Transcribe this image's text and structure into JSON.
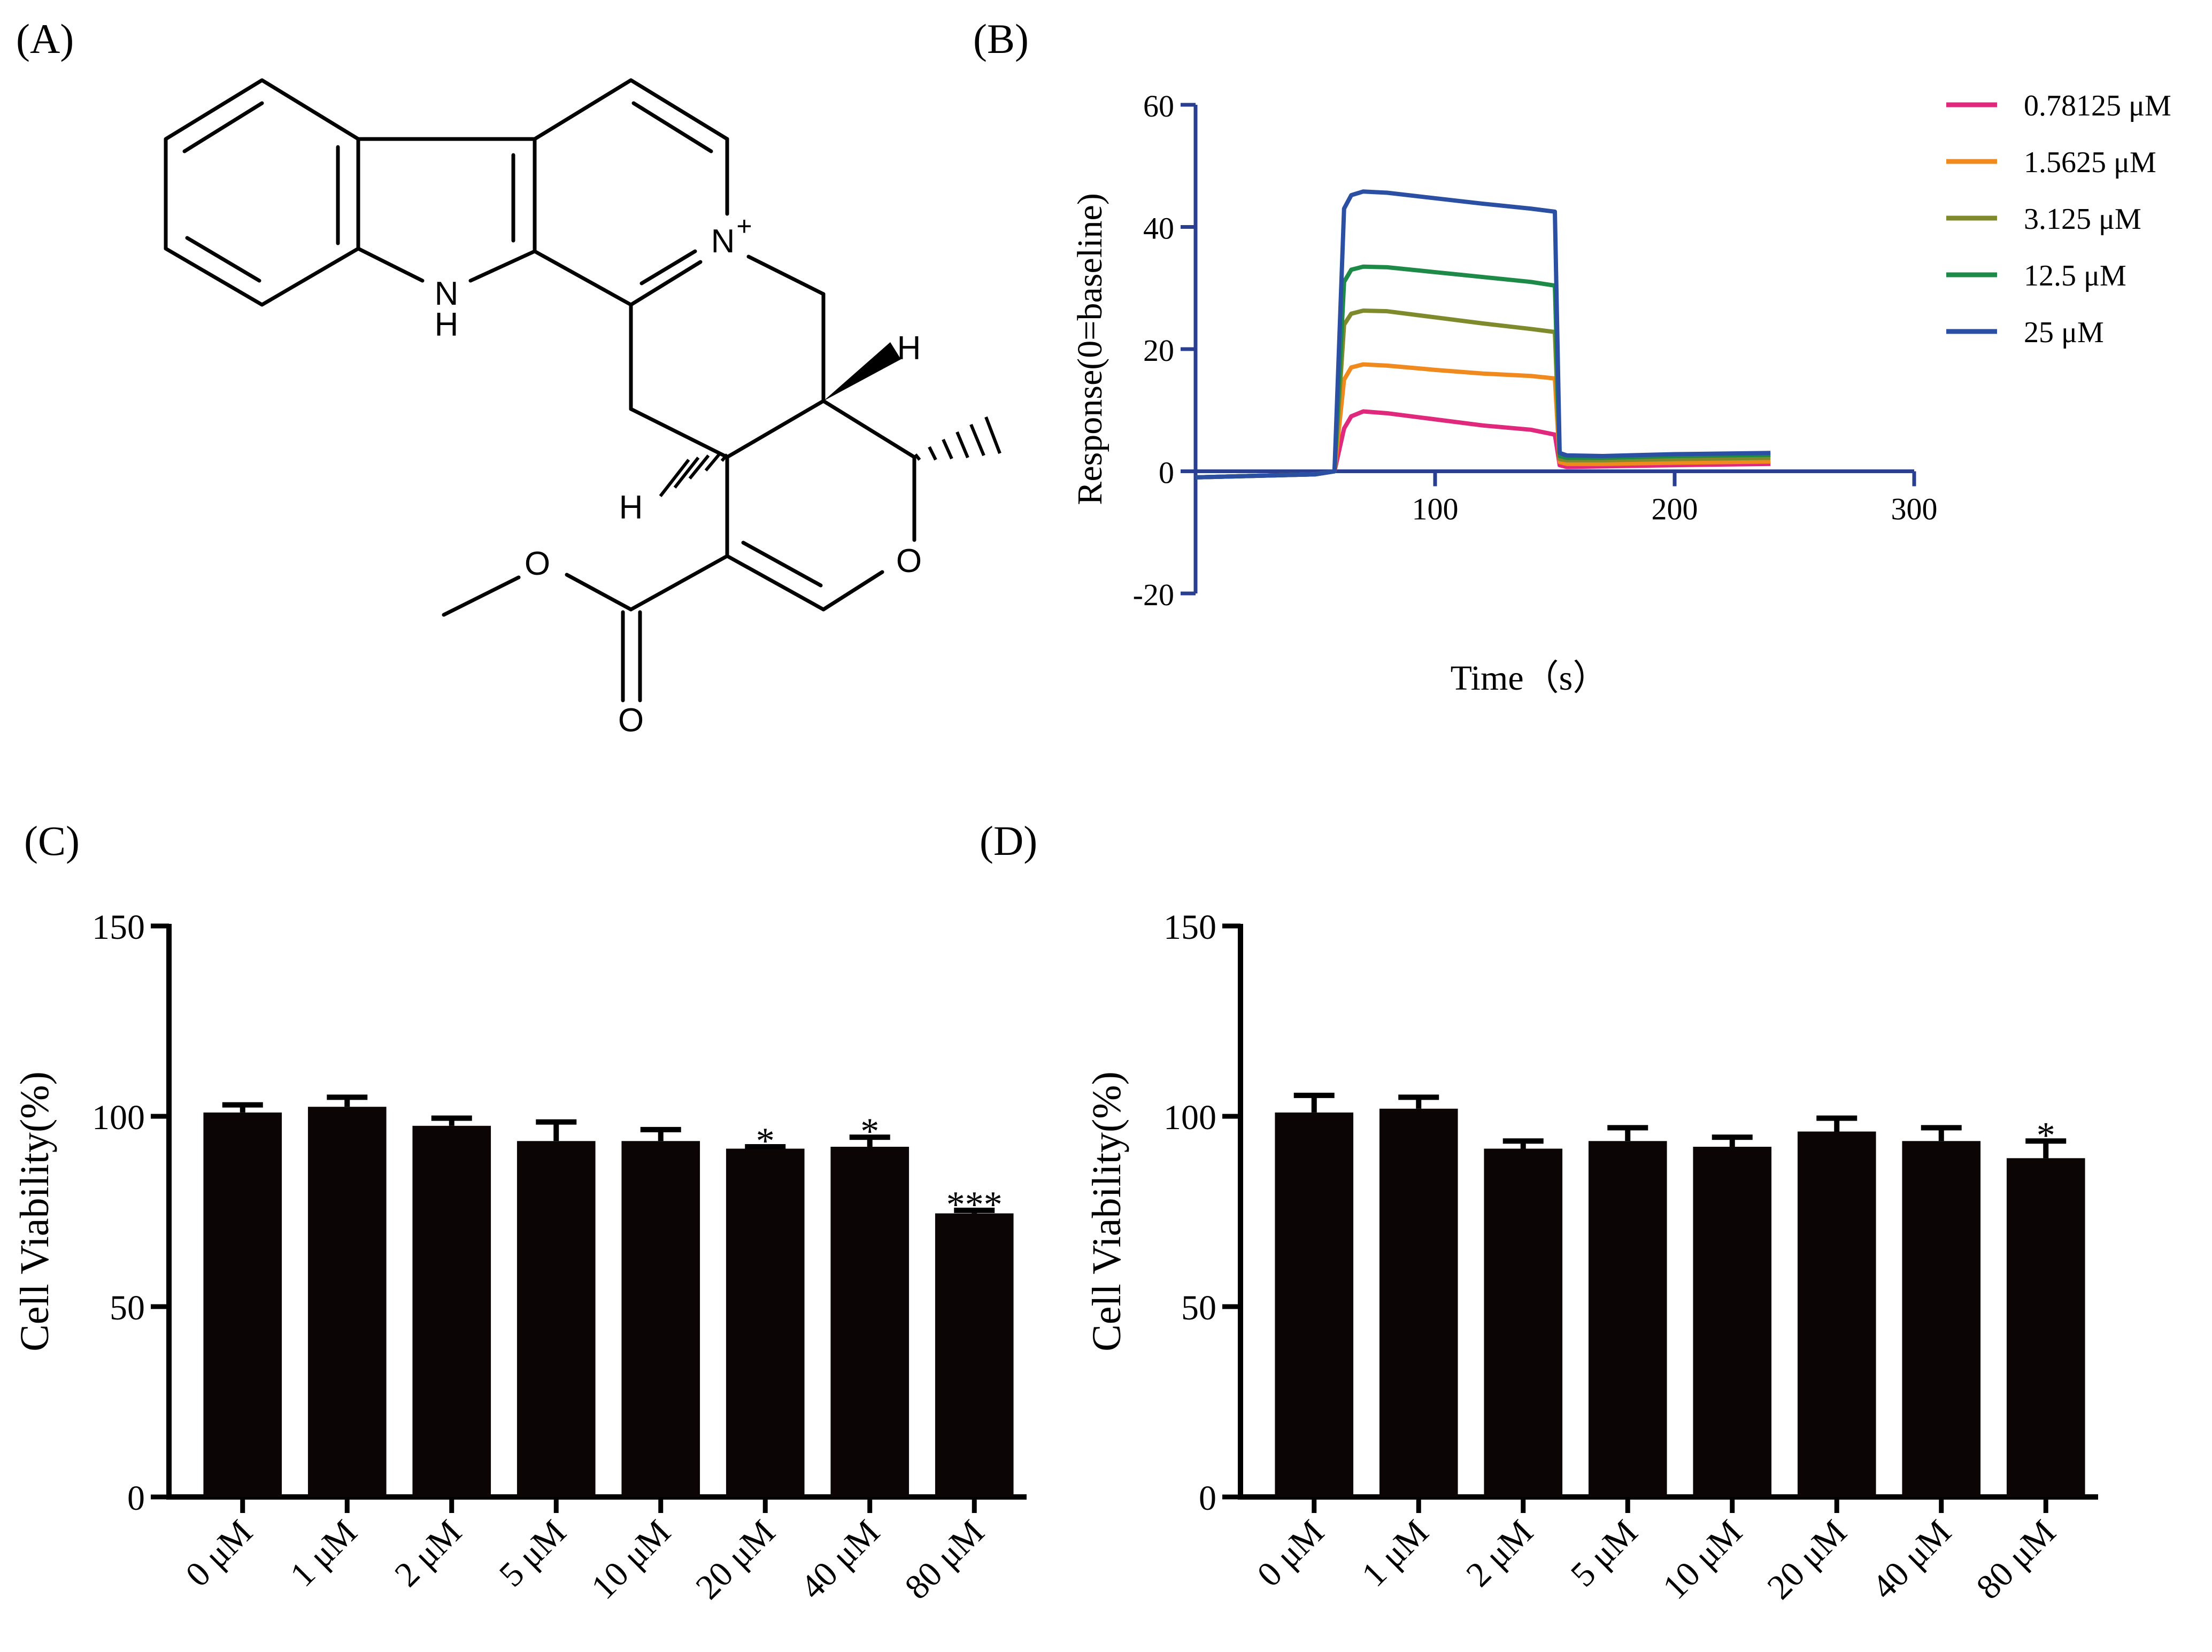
{
  "panels": {
    "a": "(A)",
    "b": "(B)",
    "c": "(C)",
    "d": "(D)"
  },
  "structure": {
    "name": "alkaloid-structure",
    "atom_labels": {
      "nh_n": "N",
      "nh_h": "H",
      "n_plus": "N",
      "plus": "+",
      "h_upper": "H",
      "h_lower": "H",
      "o_ring": "O",
      "o_ester": "O",
      "o_carbonyl": "O"
    }
  },
  "chart_data": [
    {
      "id": "B",
      "type": "line",
      "title": "",
      "xlabel": "Time（s）",
      "ylabel": "Response(0=baseline)",
      "xlim": [
        0,
        300
      ],
      "ylim": [
        -20,
        60
      ],
      "xticks": [
        100,
        200,
        300
      ],
      "yticks": [
        -20,
        0,
        20,
        40,
        60
      ],
      "xtick_labels": [
        "100",
        "200",
        "300"
      ],
      "ytick_labels": [
        "-20",
        "0",
        "20",
        "40",
        "60"
      ],
      "legend_position": "top-right",
      "series": [
        {
          "name": "0.78125 μM",
          "color": "#e0287d",
          "x": [
            0,
            50,
            58,
            62,
            65,
            70,
            80,
            100,
            120,
            140,
            150,
            152,
            155,
            170,
            200,
            240
          ],
          "y": [
            -1,
            -0.5,
            0,
            7,
            9,
            9.8,
            9.5,
            8.5,
            7.5,
            6.8,
            6,
            1,
            0.7,
            0.8,
            1,
            1.2
          ]
        },
        {
          "name": "1.5625 μM",
          "color": "#f08a1f",
          "x": [
            0,
            50,
            58,
            62,
            65,
            70,
            80,
            100,
            120,
            140,
            150,
            152,
            155,
            170,
            200,
            240
          ],
          "y": [
            -1,
            -0.5,
            0,
            15,
            17,
            17.5,
            17.3,
            16.6,
            16,
            15.6,
            15.2,
            1.5,
            1.2,
            1.2,
            1.4,
            1.6
          ]
        },
        {
          "name": "3.125 μM",
          "color": "#7f8a2c",
          "x": [
            0,
            50,
            58,
            62,
            65,
            70,
            80,
            100,
            120,
            140,
            150,
            152,
            155,
            170,
            200,
            240
          ],
          "y": [
            -1,
            -0.5,
            0,
            24,
            25.8,
            26.3,
            26.2,
            25.2,
            24.2,
            23.3,
            22.8,
            2,
            1.8,
            1.8,
            2,
            2.2
          ]
        },
        {
          "name": "12.5 μM",
          "color": "#1e8a48",
          "x": [
            0,
            50,
            58,
            62,
            65,
            70,
            80,
            100,
            120,
            140,
            150,
            152,
            155,
            170,
            200,
            240
          ],
          "y": [
            -1,
            -0.5,
            0,
            31,
            33,
            33.5,
            33.4,
            32.6,
            31.8,
            31,
            30.4,
            2.5,
            2.2,
            2.2,
            2.5,
            2.7
          ]
        },
        {
          "name": "25 μM",
          "color": "#2a4fa3",
          "x": [
            0,
            50,
            58,
            62,
            65,
            70,
            80,
            100,
            120,
            140,
            150,
            152,
            155,
            170,
            200,
            240
          ],
          "y": [
            -1,
            -0.5,
            0,
            43,
            45.2,
            45.8,
            45.6,
            44.7,
            43.8,
            43,
            42.5,
            3,
            2.6,
            2.5,
            2.8,
            3
          ]
        }
      ]
    },
    {
      "id": "C",
      "type": "bar",
      "title": "",
      "xlabel": "",
      "ylabel": "Cell Viability(%)",
      "ylim": [
        0,
        150
      ],
      "yticks": [
        0,
        50,
        100,
        150
      ],
      "ytick_labels": [
        "0",
        "50",
        "100",
        "150"
      ],
      "categories": [
        "0 μM",
        "1 μM",
        "2 μM",
        "5 μM",
        "10 μM",
        "20 μM",
        "40 μM",
        "80 μM"
      ],
      "values": [
        101,
        102.5,
        97.5,
        93.5,
        93.5,
        91.5,
        92,
        74.5
      ],
      "errors": [
        2,
        2.5,
        2,
        5,
        3,
        0.5,
        2.5,
        0.8
      ],
      "significance": [
        "",
        "",
        "",
        "",
        "",
        "*",
        "*",
        "***"
      ]
    },
    {
      "id": "D",
      "type": "bar",
      "title": "",
      "xlabel": "",
      "ylabel": "Cell Viability(%)",
      "ylim": [
        0,
        150
      ],
      "yticks": [
        0,
        50,
        100,
        150
      ],
      "ytick_labels": [
        "0",
        "50",
        "100",
        "150"
      ],
      "categories": [
        "0 μM",
        "1 μM",
        "2 μM",
        "5 μM",
        "10 μM",
        "20 μM",
        "40 μM",
        "80 μM"
      ],
      "values": [
        101,
        102,
        91.5,
        93.5,
        92,
        96,
        93.5,
        89
      ],
      "errors": [
        4.5,
        3,
        2,
        3.5,
        2.5,
        3.5,
        3.5,
        4.5
      ],
      "significance": [
        "",
        "",
        "",
        "",
        "",
        "",
        "",
        "*"
      ]
    }
  ]
}
